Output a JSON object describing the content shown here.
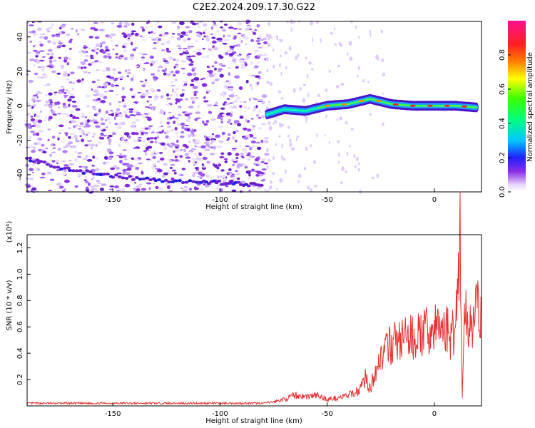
{
  "title": "C2E2.2024.209.17.30.G22",
  "spectrogram": {
    "xlabel": "Height of straight line (km)",
    "ylabel": "Frequency (Hz)",
    "xlim": [
      -190,
      22
    ],
    "ylim": [
      -50,
      49
    ],
    "xticks": [
      -150,
      -100,
      -50,
      0
    ],
    "yticks": [
      -40,
      -20,
      0,
      20,
      40
    ],
    "colorbar_label": "Normalized spectral amplitude",
    "colorbar_ticks": [
      0.0,
      0.2,
      0.4,
      0.6,
      0.8
    ],
    "colorbar_range": [
      0,
      1
    ],
    "noise_region_x": [
      -190,
      -78
    ],
    "sparse_region_x": [
      -78,
      22
    ],
    "low_band_trace": [
      [
        -190,
        -31
      ],
      [
        -170,
        -37
      ],
      [
        -150,
        -41
      ],
      [
        -130,
        -43
      ],
      [
        -110,
        -44
      ],
      [
        -95,
        -45
      ],
      [
        -80,
        -46
      ]
    ],
    "signal_ridge": [
      [
        -78,
        -5
      ],
      [
        -70,
        -2
      ],
      [
        -60,
        -3
      ],
      [
        -50,
        0
      ],
      [
        -40,
        1
      ],
      [
        -30,
        4
      ],
      [
        -20,
        1
      ],
      [
        -10,
        0
      ],
      [
        0,
        0
      ],
      [
        10,
        0
      ],
      [
        20,
        -1
      ]
    ]
  },
  "chart_data": {
    "type": "line",
    "title": "C2E2.2024.209.17.30.G22",
    "xlabel": "Height of straight line (km)",
    "ylabel": "SNR (10 * v/v)",
    "y_multiplier_label": "(x10⁴)",
    "xlim": [
      -190,
      22
    ],
    "ylim": [
      0,
      1.3
    ],
    "xticks": [
      -150,
      -100,
      -50,
      0
    ],
    "yticks": [
      0.2,
      0.4,
      0.6,
      0.8,
      1.0,
      1.2
    ],
    "color": "#e83030",
    "series": [
      {
        "x": [
          -190,
          -180,
          -170,
          -160,
          -150,
          -140,
          -130,
          -120,
          -110,
          -100,
          -90,
          -80,
          -75,
          -70,
          -65,
          -60,
          -55,
          -50,
          -45,
          -40,
          -35,
          -32,
          -30,
          -28,
          -25,
          -22,
          -20,
          -15,
          -10,
          -5,
          0,
          5,
          8,
          10,
          12,
          13,
          14,
          16,
          18,
          20,
          22
        ],
        "values": [
          0.02,
          0.02,
          0.02,
          0.02,
          0.02,
          0.02,
          0.02,
          0.02,
          0.02,
          0.02,
          0.02,
          0.02,
          0.03,
          0.05,
          0.08,
          0.07,
          0.08,
          0.05,
          0.06,
          0.08,
          0.12,
          0.22,
          0.12,
          0.25,
          0.38,
          0.42,
          0.48,
          0.5,
          0.52,
          0.55,
          0.58,
          0.6,
          0.52,
          0.65,
          1.32,
          0.05,
          0.7,
          0.62,
          0.68,
          0.7,
          0.74
        ]
      }
    ]
  }
}
